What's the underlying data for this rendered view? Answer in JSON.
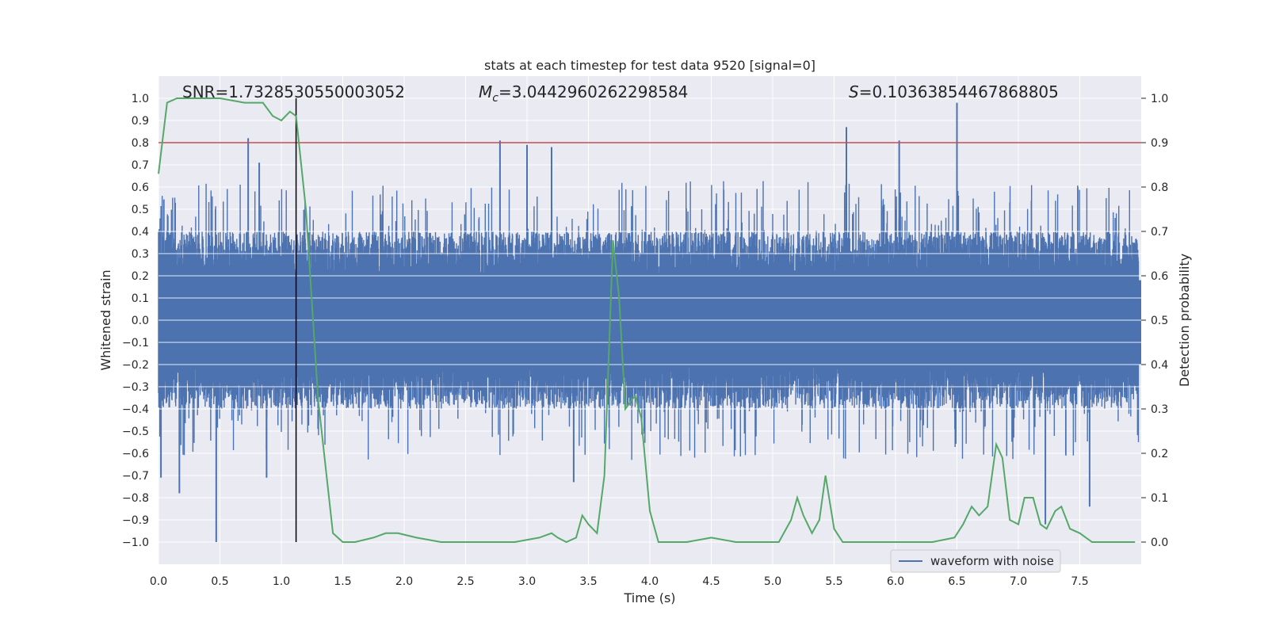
{
  "chart_data": {
    "type": "line",
    "title": "stats at each timestep for test data 9520 [signal=0]",
    "xlabel": "Time (s)",
    "ylabel_left": "Whitened strain",
    "ylabel_right": "Detection probability",
    "xlim": [
      0.0,
      8.0
    ],
    "ylim_left": [
      -1.1,
      1.1
    ],
    "ylim_right": [
      -0.05,
      1.05
    ],
    "xticks": [
      "0.0",
      "0.5",
      "1.0",
      "1.5",
      "2.0",
      "2.5",
      "3.0",
      "3.5",
      "4.0",
      "4.5",
      "5.0",
      "5.5",
      "6.0",
      "6.5",
      "7.0",
      "7.5"
    ],
    "yticks_left": [
      "1.0",
      "0.9",
      "0.8",
      "0.7",
      "0.6",
      "0.5",
      "0.4",
      "0.3",
      "0.2",
      "0.1",
      "0.0",
      "−0.1",
      "−0.2",
      "−0.3",
      "−0.4",
      "−0.5",
      "−0.6",
      "−0.7",
      "−0.8",
      "−0.9",
      "−1.0"
    ],
    "yticks_right": [
      "1.0",
      "0.9",
      "0.8",
      "0.7",
      "0.6",
      "0.5",
      "0.4",
      "0.3",
      "0.2",
      "0.1",
      "0.0"
    ],
    "grid": true,
    "legend_position": "lower-right",
    "annotations": {
      "snr": "SNR=1.7328530550003052",
      "mc_symbol": "M",
      "mc_sub": "c",
      "mc_value": "=3.0442960262298584",
      "s_symbol": "S",
      "s_value": "=0.10363854467868805"
    },
    "threshold_prob": 0.9,
    "marker_time": 1.12,
    "colors": {
      "waveform": "#4c72b0",
      "probability": "#55a868",
      "threshold": "#c44e52",
      "marker": "#000000",
      "plot_bg": "#eaeaf2"
    },
    "series": [
      {
        "name": "waveform with noise",
        "envelope_note": "dense noise roughly within ±0.35 with spikes",
        "spikes": [
          {
            "t": 0.02,
            "v": -0.71
          },
          {
            "t": 0.17,
            "v": -0.78
          },
          {
            "t": 0.47,
            "v": -1.0
          },
          {
            "t": 0.73,
            "v": 0.82
          },
          {
            "t": 0.82,
            "v": 0.71
          },
          {
            "t": 0.88,
            "v": -0.71
          },
          {
            "t": 2.78,
            "v": 0.81
          },
          {
            "t": 3.0,
            "v": 0.79
          },
          {
            "t": 3.2,
            "v": 0.78
          },
          {
            "t": 3.38,
            "v": -0.73
          },
          {
            "t": 5.6,
            "v": 0.87
          },
          {
            "t": 6.03,
            "v": 0.81
          },
          {
            "t": 6.5,
            "v": 0.98
          },
          {
            "t": 7.22,
            "v": -0.92
          },
          {
            "t": 7.58,
            "v": -0.84
          }
        ]
      },
      {
        "name": "",
        "x": [
          0.0,
          0.07,
          0.15,
          0.3,
          0.5,
          0.7,
          0.85,
          0.93,
          1.0,
          1.07,
          1.12,
          1.2,
          1.3,
          1.42,
          1.5,
          1.6,
          1.75,
          1.85,
          1.95,
          2.1,
          2.3,
          2.6,
          2.9,
          3.1,
          3.2,
          3.25,
          3.32,
          3.4,
          3.45,
          3.5,
          3.57,
          3.63,
          3.7,
          3.75,
          3.8,
          3.88,
          3.93,
          4.0,
          4.07,
          4.15,
          4.3,
          4.5,
          4.7,
          4.9,
          5.05,
          5.15,
          5.2,
          5.25,
          5.32,
          5.38,
          5.43,
          5.5,
          5.57,
          5.63,
          5.75,
          5.9,
          6.1,
          6.3,
          6.48,
          6.55,
          6.62,
          6.68,
          6.75,
          6.82,
          6.87,
          6.93,
          7.0,
          7.05,
          7.12,
          7.18,
          7.23,
          7.3,
          7.35,
          7.42,
          7.5,
          7.6,
          7.75,
          7.95
        ],
        "values": [
          0.83,
          0.99,
          1.0,
          1.0,
          1.0,
          0.99,
          0.99,
          0.96,
          0.95,
          0.97,
          0.96,
          0.75,
          0.32,
          0.02,
          0.0,
          0.0,
          0.01,
          0.02,
          0.02,
          0.01,
          0.0,
          0.0,
          0.0,
          0.01,
          0.02,
          0.01,
          0.0,
          0.01,
          0.06,
          0.04,
          0.02,
          0.15,
          0.68,
          0.55,
          0.3,
          0.33,
          0.28,
          0.07,
          0.0,
          0.0,
          0.0,
          0.01,
          0.0,
          0.0,
          0.0,
          0.05,
          0.1,
          0.06,
          0.02,
          0.05,
          0.15,
          0.03,
          0.0,
          0.0,
          0.0,
          0.0,
          0.0,
          0.0,
          0.01,
          0.04,
          0.08,
          0.06,
          0.08,
          0.22,
          0.19,
          0.05,
          0.04,
          0.1,
          0.1,
          0.04,
          0.03,
          0.07,
          0.08,
          0.03,
          0.02,
          0.0,
          0.0,
          0.0
        ]
      }
    ]
  }
}
